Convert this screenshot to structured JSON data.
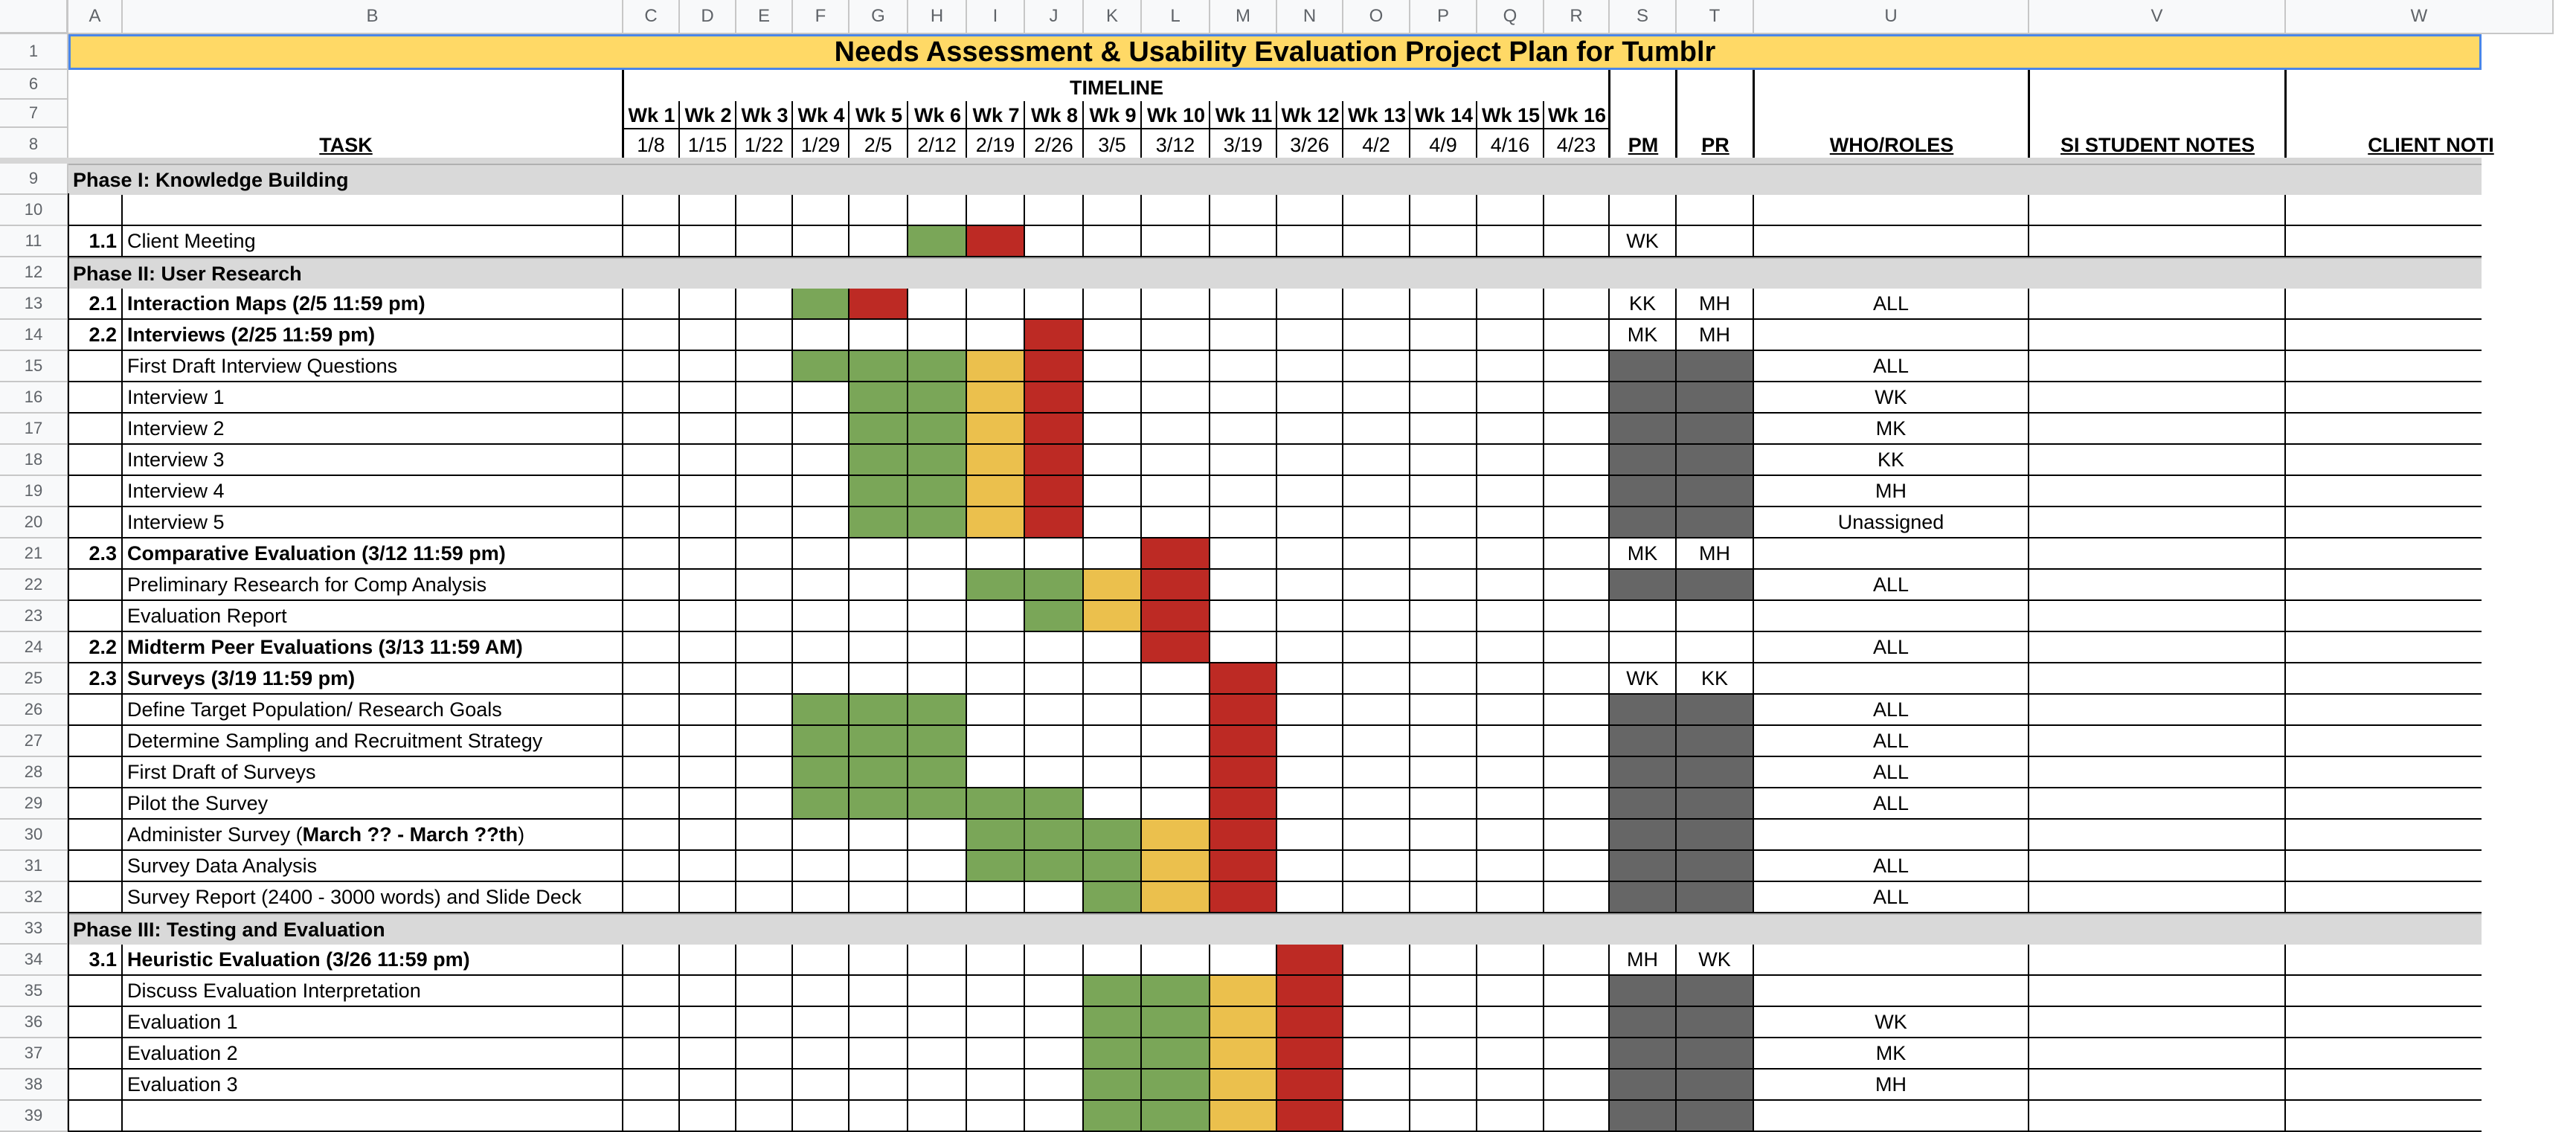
{
  "title": "Needs Assessment & Usability Evaluation Project Plan for Tumblr",
  "columns": [
    "A",
    "B",
    "C",
    "D",
    "E",
    "F",
    "G",
    "H",
    "I",
    "J",
    "K",
    "L",
    "M",
    "N",
    "O",
    "P",
    "Q",
    "R",
    "S",
    "T",
    "U",
    "V",
    "W"
  ],
  "header": {
    "timeline_label": "TIMELINE",
    "task_label": "TASK",
    "pm_label": "PM",
    "pr_label": "PR",
    "who_label": "WHO/ROLES",
    "si_label": "SI STUDENT NOTES",
    "client_label": "CLIENT NOTI",
    "weeks": [
      "Wk 1",
      "Wk 2",
      "Wk 3",
      "Wk 4",
      "Wk 5",
      "Wk 6",
      "Wk 7",
      "Wk 8",
      "Wk 9",
      "Wk 10",
      "Wk 11",
      "Wk 12",
      "Wk 13",
      "Wk 14",
      "Wk 15",
      "Wk 16"
    ],
    "dates": [
      "1/8",
      "1/15",
      "1/22",
      "1/29",
      "2/5",
      "2/12",
      "2/19",
      "2/26",
      "3/5",
      "3/12",
      "3/19",
      "3/26",
      "4/2",
      "4/9",
      "4/16",
      "4/23"
    ]
  },
  "header_row_numbers": [
    "1",
    "6",
    "7",
    "8"
  ],
  "rows": [
    {
      "num": "9",
      "type": "phase",
      "label": "Phase I: Knowledge Building"
    },
    {
      "num": "10",
      "type": "blank"
    },
    {
      "num": "11",
      "id": "1.1",
      "task": "Client Meeting",
      "bold": false,
      "pm": "WK",
      "pr": "",
      "who": "",
      "weeks": "_____GR_________",
      "pmfill": false
    },
    {
      "num": "12",
      "type": "phase",
      "label": "Phase II: User Research"
    },
    {
      "num": "13",
      "id": "2.1",
      "task": "Interaction Maps  (2/5 11:59 pm)",
      "bold": true,
      "pm": "KK",
      "pr": "MH",
      "who": "ALL",
      "weeks": "___GR___________",
      "pmfill": false
    },
    {
      "num": "14",
      "id": "2.2",
      "task": "Interviews (2/25 11:59 pm)",
      "bold": true,
      "pm": "MK",
      "pr": "MH",
      "who": "",
      "weeks": "_______R________",
      "pmfill": false
    },
    {
      "num": "15",
      "id": "",
      "task": "First Draft Interview Questions",
      "bold": false,
      "pm": "",
      "pr": "",
      "who": "ALL",
      "weeks": "___GGGYR________",
      "pmfill": true
    },
    {
      "num": "16",
      "id": "",
      "task": "Interview 1",
      "bold": false,
      "pm": "",
      "pr": "",
      "who": "WK",
      "weeks": "____GGYR________",
      "pmfill": true
    },
    {
      "num": "17",
      "id": "",
      "task": "Interview 2",
      "bold": false,
      "pm": "",
      "pr": "",
      "who": "MK",
      "weeks": "____GGYR________",
      "pmfill": true
    },
    {
      "num": "18",
      "id": "",
      "task": "Interview 3",
      "bold": false,
      "pm": "",
      "pr": "",
      "who": "KK",
      "weeks": "____GGYR________",
      "pmfill": true
    },
    {
      "num": "19",
      "id": "",
      "task": "Interview 4",
      "bold": false,
      "pm": "",
      "pr": "",
      "who": "MH",
      "weeks": "____GGYR________",
      "pmfill": true
    },
    {
      "num": "20",
      "id": "",
      "task": "Interview 5",
      "bold": false,
      "pm": "",
      "pr": "",
      "who": "Unassigned",
      "weeks": "____GGYR________",
      "pmfill": true
    },
    {
      "num": "21",
      "id": "2.3",
      "task": "Comparative Evaluation (3/12 11:59 pm)",
      "bold": true,
      "pm": "MK",
      "pr": "MH",
      "who": "",
      "weeks": "_________R______",
      "pmfill": false
    },
    {
      "num": "22",
      "id": "",
      "task": "Preliminary Research for Comp Analysis",
      "bold": false,
      "pm": "",
      "pr": "",
      "who": "ALL",
      "weeks": "______GGYR______",
      "pmfill": true
    },
    {
      "num": "23",
      "id": "",
      "task": "Evaluation Report",
      "bold": false,
      "pm": "",
      "pr": "",
      "who": "",
      "weeks": "_______GYR______",
      "pmfill": false
    },
    {
      "num": "24",
      "id": "2.2",
      "task": "Midterm Peer Evaluations (3/13 11:59 AM)",
      "bold": true,
      "pm": "",
      "pr": "",
      "who": "ALL",
      "weeks": "_________R______",
      "pmfill": false
    },
    {
      "num": "25",
      "id": "2.3",
      "task": "Surveys (3/19 11:59 pm)",
      "bold": true,
      "pm": "WK",
      "pr": "KK",
      "who": "",
      "weeks": "__________R_____",
      "pmfill": false
    },
    {
      "num": "26",
      "id": "",
      "task": "Define Target Population/ Research Goals",
      "bold": false,
      "pm": "",
      "pr": "",
      "who": "ALL",
      "weeks": "___GGG____R_____",
      "pmfill": true
    },
    {
      "num": "27",
      "id": "",
      "task": "Determine Sampling and Recruitment Strategy",
      "bold": false,
      "pm": "",
      "pr": "",
      "who": "ALL",
      "weeks": "___GGG____R_____",
      "pmfill": true
    },
    {
      "num": "28",
      "id": "",
      "task": "First Draft of Surveys",
      "bold": false,
      "pm": "",
      "pr": "",
      "who": "ALL",
      "weeks": "___GGG____R_____",
      "pmfill": true
    },
    {
      "num": "29",
      "id": "",
      "task": "Pilot the Survey",
      "bold": false,
      "pm": "",
      "pr": "",
      "who": "ALL",
      "weeks": "___GGGGG__R_____",
      "pmfill": true
    },
    {
      "num": "30",
      "id": "",
      "task": "Administer Survey (",
      "task_bold_part": "March ?? - March ??th",
      "task_tail": ")",
      "bold": false,
      "pm": "",
      "pr": "",
      "who": "",
      "weeks": "______GGGYR_____",
      "pmfill": true
    },
    {
      "num": "31",
      "id": "",
      "task": "Survey Data Analysis",
      "bold": false,
      "pm": "",
      "pr": "",
      "who": "ALL",
      "weeks": "______GGGYR_____",
      "pmfill": true
    },
    {
      "num": "32",
      "id": "",
      "task": "Survey Report (2400 - 3000 words) and Slide Deck",
      "bold": false,
      "pm": "",
      "pr": "",
      "who": "ALL",
      "weeks": "________GYR_____",
      "pmfill": true
    },
    {
      "num": "33",
      "type": "phase",
      "label": "Phase III: Testing and Evaluation"
    },
    {
      "num": "34",
      "id": "3.1",
      "task": "Heuristic Evaluation (3/26 11:59 pm)",
      "bold": true,
      "pm": "MH",
      "pr": "WK",
      "who": "",
      "weeks": "___________R____",
      "pmfill": false
    },
    {
      "num": "35",
      "id": "",
      "task": "Discuss Evaluation Interpretation",
      "bold": false,
      "pm": "",
      "pr": "",
      "who": "",
      "weeks": "________GGYR____",
      "pmfill": true
    },
    {
      "num": "36",
      "id": "",
      "task": "Evaluation 1",
      "bold": false,
      "pm": "",
      "pr": "",
      "who": "WK",
      "weeks": "________GGYR____",
      "pmfill": true
    },
    {
      "num": "37",
      "id": "",
      "task": "Evaluation 2",
      "bold": false,
      "pm": "",
      "pr": "",
      "who": "MK",
      "weeks": "________GGYR____",
      "pmfill": true
    },
    {
      "num": "38",
      "id": "",
      "task": "Evaluation 3",
      "bold": false,
      "pm": "",
      "pr": "",
      "who": "MH",
      "weeks": "________GGYR____",
      "pmfill": true
    },
    {
      "num": "39",
      "id": "",
      "task": "",
      "bold": false,
      "pm": "",
      "pr": "",
      "who": "",
      "weeks": "________GGYR____",
      "pmfill": true
    }
  ]
}
